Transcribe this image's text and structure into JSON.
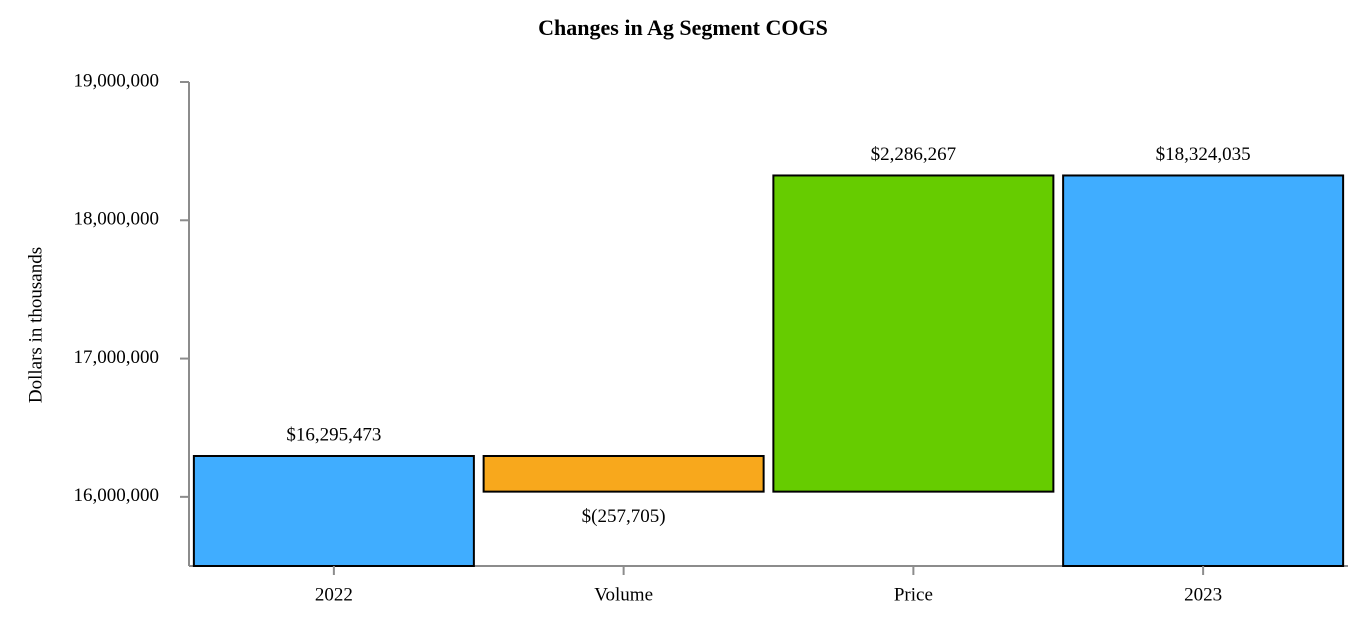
{
  "chart_data": {
    "type": "waterfall",
    "title": "Changes in Ag Segment COGS",
    "y_label": "Dollars in thousands",
    "categories": [
      "2022",
      "Volume",
      "Price",
      "2023"
    ],
    "values": [
      16295473,
      -257705,
      2286267,
      18324035
    ],
    "value_labels": [
      "$16,295,473",
      "$(257,705)",
      "$2,286,267",
      "$18,324,035"
    ],
    "colors": [
      "#40adff",
      "#f8a81c",
      "#66cc00",
      "#40adff"
    ],
    "ylim": [
      15500000,
      19000000
    ],
    "yticks": [
      {
        "value": 16000000,
        "label": "16,000,000"
      },
      {
        "value": 17000000,
        "label": "17,000,000"
      },
      {
        "value": 18000000,
        "label": "18,000,000"
      },
      {
        "value": 19000000,
        "label": "19,000,000"
      }
    ]
  }
}
